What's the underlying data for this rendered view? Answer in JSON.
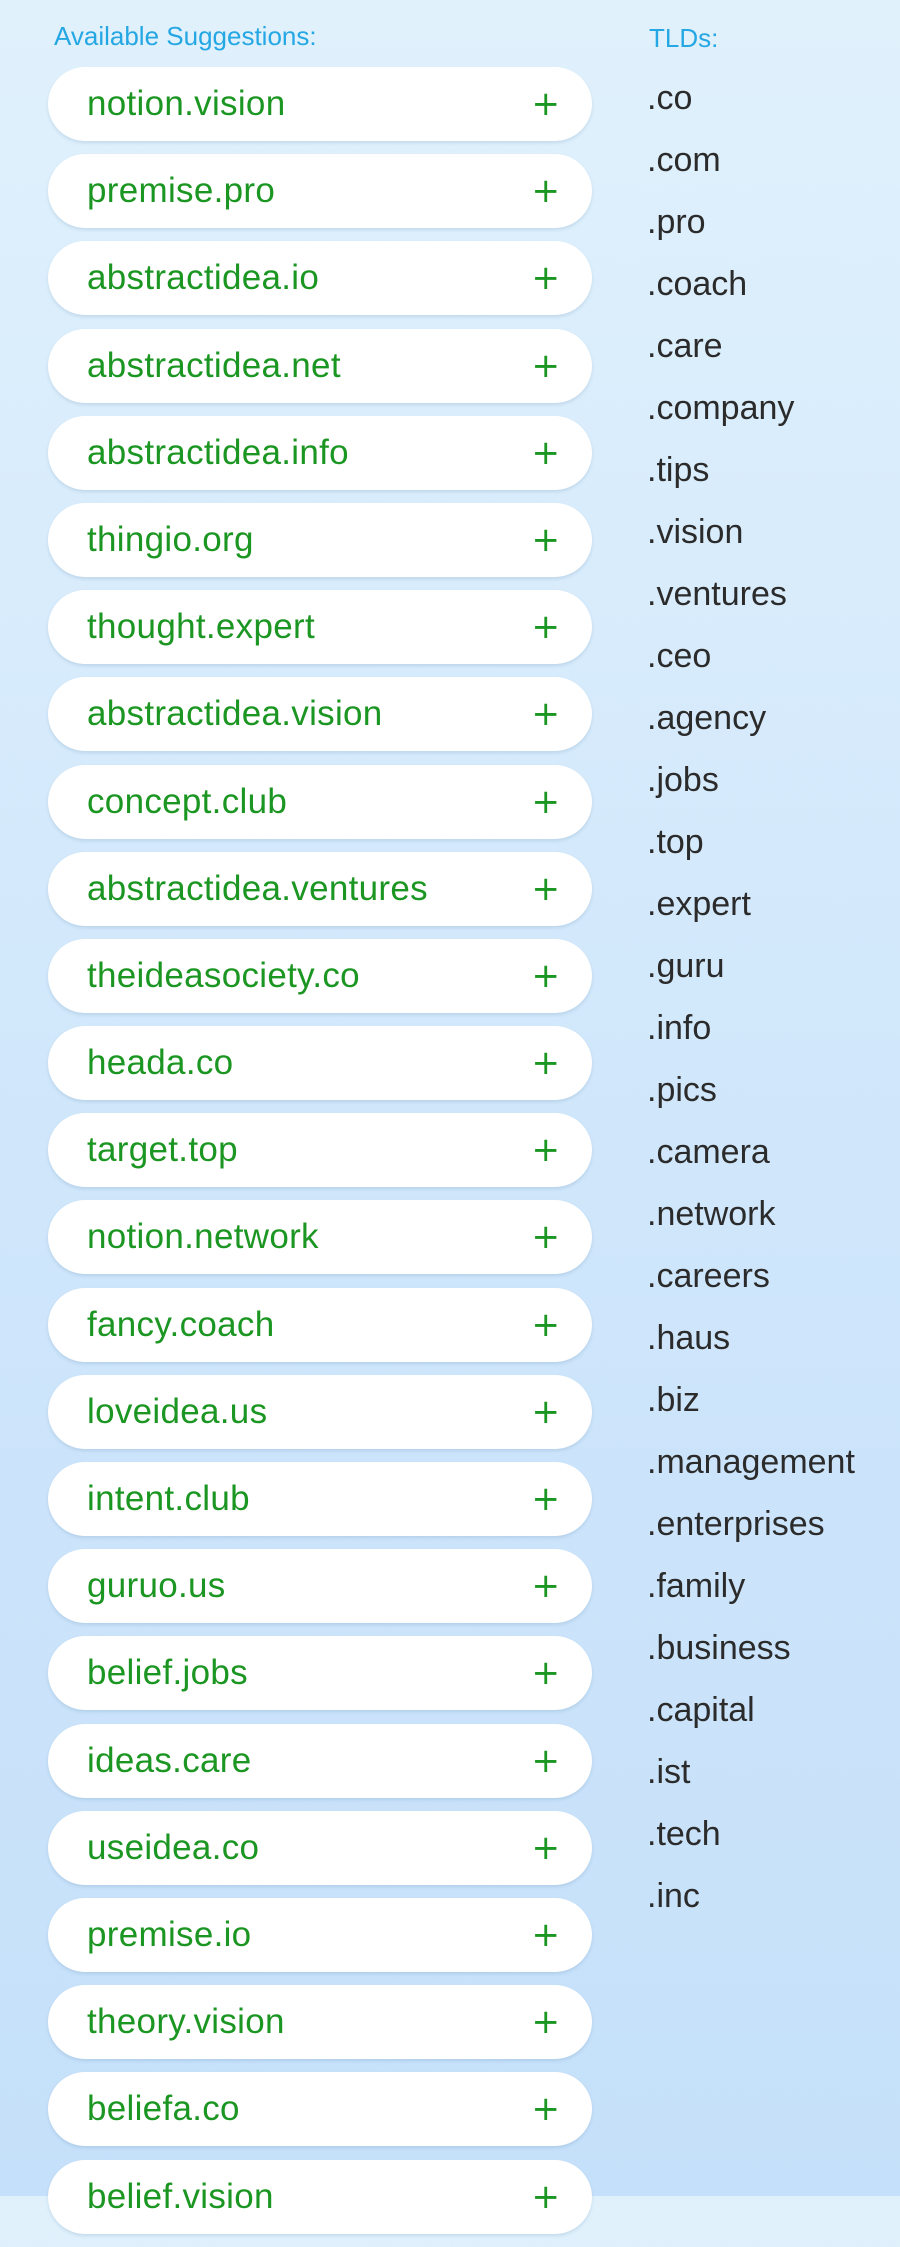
{
  "suggestions_header": "Available Suggestions:",
  "tlds_header": "TLDs:",
  "add_symbol": "+",
  "suggestions": [
    "notion.vision",
    "premise.pro",
    "abstractidea.io",
    "abstractidea.net",
    "abstractidea.info",
    "thingio.org",
    "thought.expert",
    "abstractidea.vision",
    "concept.club",
    "abstractidea.ventures",
    "theideasociety.co",
    "heada.co",
    "target.top",
    "notion.network",
    "fancy.coach",
    "loveidea.us",
    "intent.club",
    "guruo.us",
    "belief.jobs",
    "ideas.care",
    "useidea.co",
    "premise.io",
    "theory.vision",
    "beliefa.co",
    "belief.vision"
  ],
  "tlds": [
    ".co",
    ".com",
    ".pro",
    ".coach",
    ".care",
    ".company",
    ".tips",
    ".vision",
    ".ventures",
    ".ceo",
    ".agency",
    ".jobs",
    ".top",
    ".expert",
    ".guru",
    ".info",
    ".pics",
    ".camera",
    ".network",
    ".careers",
    ".haus",
    ".biz",
    ".management",
    ".enterprises",
    ".family",
    ".business",
    ".capital",
    ".ist",
    ".tech",
    ".inc"
  ],
  "colors": {
    "header": "#25a7e3",
    "suggestion_text": "#1c9622",
    "tld_text": "#2b2b2b",
    "pill_background": "#ffffff"
  }
}
